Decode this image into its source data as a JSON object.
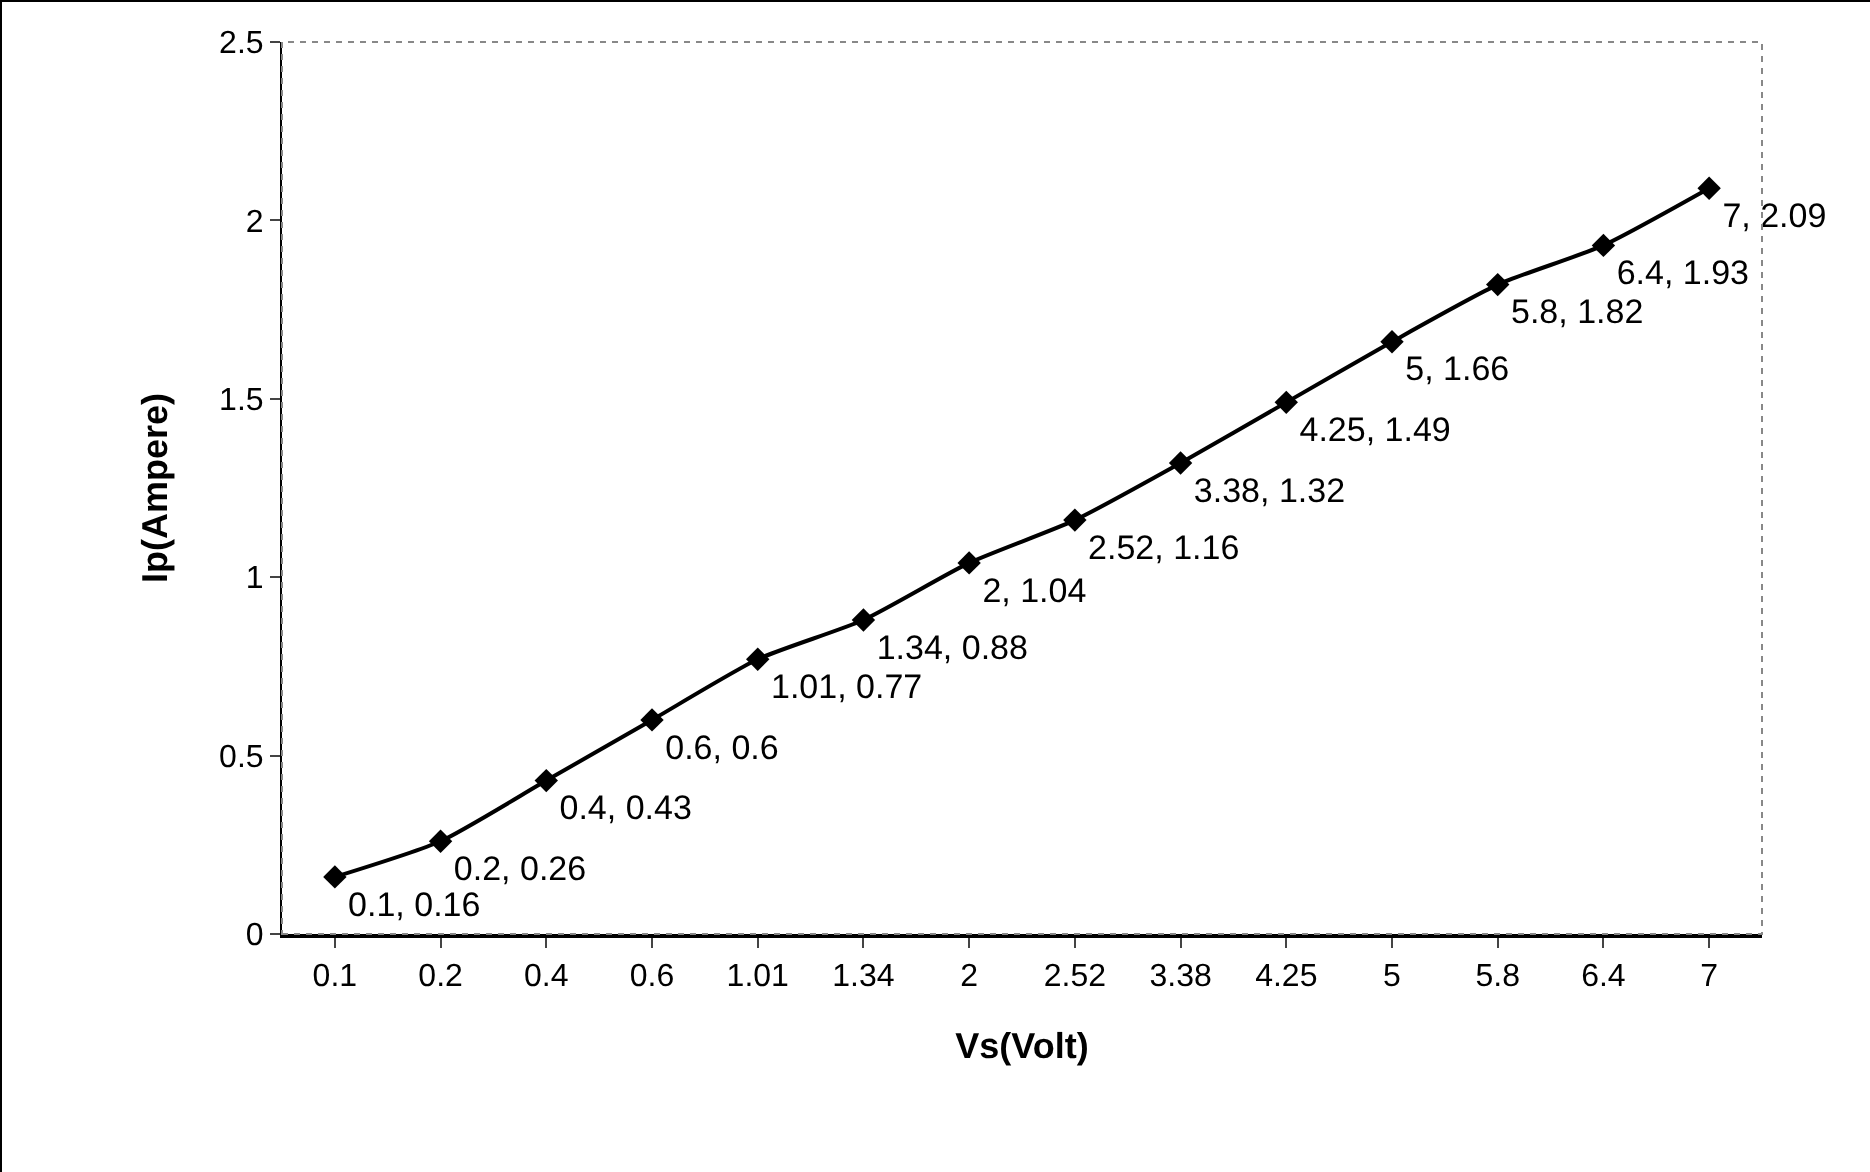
{
  "chart_data": {
    "type": "line",
    "xlabel": "Vs(Volt)",
    "ylabel": "Ip(Ampere)",
    "categories": [
      "0.1",
      "0.2",
      "0.4",
      "0.6",
      "1.01",
      "1.34",
      "2",
      "2.52",
      "3.38",
      "4.25",
      "5",
      "5.8",
      "6.4",
      "7"
    ],
    "series": [
      {
        "color": "#000000",
        "values": [
          0.16,
          0.26,
          0.43,
          0.6,
          0.77,
          0.88,
          1.04,
          1.16,
          1.32,
          1.49,
          1.66,
          1.82,
          1.93,
          2.09
        ],
        "value_labels": [
          "0.1, 0.16",
          "0.2, 0.26",
          "0.4, 0.43",
          "0.6, 0.6",
          "1.01, 0.77",
          "1.34, 0.88",
          "2, 1.04",
          "2.52, 1.16",
          "3.38, 1.32",
          "4.25, 1.49",
          "5, 1.66",
          "5.8, 1.82",
          "6.4, 1.93",
          "7, 2.09"
        ]
      }
    ],
    "ylim": [
      0,
      2.5
    ],
    "yticks": [
      0,
      0.5,
      1,
      1.5,
      2,
      2.5
    ],
    "grid": false,
    "marker": "diamond",
    "line_style": "solid"
  }
}
